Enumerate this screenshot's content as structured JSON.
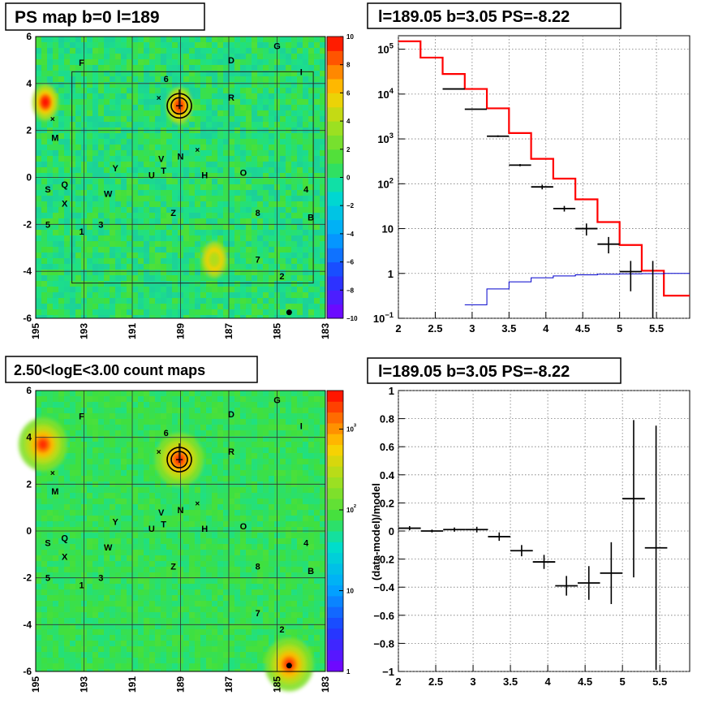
{
  "colors": {
    "map_bg": "#3fe03f",
    "map_bg_alt": "#5fe83a",
    "model_line": "#ff0000",
    "background_line": "#0000cc",
    "data_marks": "#000000",
    "grid": "#888888"
  },
  "map_ticks_x": [
    "195",
    "193",
    "191",
    "189",
    "187",
    "185",
    "183"
  ],
  "map_ticks_y": [
    "6",
    "4",
    "2",
    "0",
    "-2",
    "-4",
    "-6"
  ],
  "source_labels": [
    {
      "text": "G",
      "l": 185.0,
      "b": 5.6
    },
    {
      "text": "F",
      "l": 193.1,
      "b": 4.9
    },
    {
      "text": "D",
      "l": 186.9,
      "b": 5.0
    },
    {
      "text": "I",
      "l": 184.0,
      "b": 4.5
    },
    {
      "text": "6",
      "l": 189.6,
      "b": 4.2
    },
    {
      "text": "R",
      "l": 186.9,
      "b": 3.4
    },
    {
      "text": "M",
      "l": 194.2,
      "b": 1.7
    },
    {
      "text": "V",
      "l": 189.8,
      "b": 0.8
    },
    {
      "text": "N",
      "l": 189.0,
      "b": 0.9
    },
    {
      "text": "Y",
      "l": 191.7,
      "b": 0.4
    },
    {
      "text": "T",
      "l": 189.7,
      "b": 0.3
    },
    {
      "text": "U",
      "l": 190.2,
      "b": 0.1
    },
    {
      "text": "H",
      "l": 188.0,
      "b": 0.1
    },
    {
      "text": "O",
      "l": 186.4,
      "b": 0.2
    },
    {
      "text": "S",
      "l": 194.5,
      "b": -0.5
    },
    {
      "text": "Q",
      "l": 193.8,
      "b": -0.3
    },
    {
      "text": "W",
      "l": 192.0,
      "b": -0.7
    },
    {
      "text": "4",
      "l": 183.8,
      "b": -0.5
    },
    {
      "text": "X",
      "l": 193.8,
      "b": -1.1
    },
    {
      "text": "Z",
      "l": 189.3,
      "b": -1.5
    },
    {
      "text": "8",
      "l": 185.8,
      "b": -1.5
    },
    {
      "text": "B",
      "l": 183.6,
      "b": -1.7
    },
    {
      "text": "5",
      "l": 194.5,
      "b": -2.0
    },
    {
      "text": "3",
      "l": 192.3,
      "b": -2.0
    },
    {
      "text": "1",
      "l": 193.1,
      "b": -2.3
    },
    {
      "text": "7",
      "l": 185.8,
      "b": -3.5
    },
    {
      "text": "2",
      "l": 184.8,
      "b": -4.2
    }
  ],
  "cross_marks": [
    {
      "l": 189.9,
      "b": 3.4
    },
    {
      "l": 194.3,
      "b": 2.5
    },
    {
      "l": 188.3,
      "b": 1.2
    }
  ],
  "panels": {
    "ps_map": {
      "title": "PS map b=0 l=189",
      "colorbar_ticks": [
        "10",
        "8",
        "6",
        "4",
        "2",
        "0",
        "−2",
        "−4",
        "−6",
        "−8",
        "−10"
      ]
    },
    "count_map": {
      "title": "2.50<logE<3.00 count maps",
      "colorbar_ticks": [
        {
          "label": "10",
          "sup": "3"
        },
        {
          "label": "10",
          "sup": "2"
        },
        {
          "label": "10",
          "sup": ""
        },
        {
          "label": "1",
          "sup": ""
        }
      ]
    },
    "spectrum": {
      "title": "l=189.05 b=3.05 PS=-8.22",
      "x_ticks": [
        "2",
        "2.5",
        "3",
        "3.5",
        "4",
        "4.5",
        "5",
        "5.5"
      ],
      "y_ticks": [
        {
          "base": "10",
          "exp": "5"
        },
        {
          "base": "10",
          "exp": "4"
        },
        {
          "base": "10",
          "exp": "3"
        },
        {
          "base": "10",
          "exp": "2"
        },
        {
          "base": "10",
          "exp": ""
        },
        {
          "base": "1",
          "exp": ""
        },
        {
          "base": "10",
          "exp": "−1"
        }
      ]
    },
    "residual": {
      "title": "l=189.05 b=3.05 PS=-8.22",
      "ylabel": "(data-model)/model",
      "x_ticks": [
        "2",
        "2.5",
        "3",
        "3.5",
        "4",
        "4.5",
        "5",
        "5.5"
      ],
      "y_ticks": [
        "1",
        "0.8",
        "0.6",
        "0.4",
        "0.2",
        "0",
        "−0.2",
        "−0.4",
        "−0.6",
        "−0.8",
        "−1"
      ]
    }
  },
  "chart_data": [
    {
      "type": "heatmap",
      "title": "PS map b=0 l=189",
      "xlim": [
        195,
        183
      ],
      "ylim": [
        -6,
        6
      ],
      "zlim": [
        -10,
        10
      ],
      "colorbar": "linear",
      "grid": true,
      "box": {
        "l": [
          193.5,
          183.5
        ],
        "b": [
          -4.5,
          4.5
        ]
      },
      "hotspots": [
        {
          "l": 194.6,
          "b": 3.2,
          "value": 10
        },
        {
          "l": 189.05,
          "b": 3.05,
          "value": 9
        },
        {
          "l": 187.6,
          "b": -3.5,
          "value": 4
        }
      ],
      "target": {
        "l": 189.05,
        "b": 3.05
      }
    },
    {
      "type": "heatmap",
      "title": "2.50<logE<3.00 count maps",
      "xlim": [
        195,
        183
      ],
      "ylim": [
        -6,
        6
      ],
      "zlim": [
        1,
        3000
      ],
      "colorbar": "log",
      "grid": true,
      "hotspots": [
        {
          "l": 194.7,
          "b": 3.7,
          "value": 2000
        },
        {
          "l": 184.5,
          "b": -5.7,
          "value": 2000
        },
        {
          "l": 189.05,
          "b": 3.05,
          "value": 1500
        }
      ],
      "target": {
        "l": 189.05,
        "b": 3.05
      }
    },
    {
      "type": "line",
      "title": "l=189.05 b=3.05 PS=-8.22",
      "xlim": [
        2,
        5.95
      ],
      "ylim": [
        0.1,
        200000
      ],
      "yscale": "log",
      "grid": true,
      "series": [
        {
          "style": "step",
          "edges": [
            2.0,
            2.3,
            2.6,
            2.9,
            3.2,
            3.5,
            3.8,
            4.1,
            4.4,
            4.7,
            5.0,
            5.3,
            5.6,
            5.95
          ],
          "values": [
            150000,
            65000,
            28000,
            13000,
            4800,
            1350,
            360,
            130,
            45,
            14,
            4.3,
            1.15,
            0.32
          ]
        },
        {
          "style": "step",
          "edges": [
            2.9,
            3.2,
            3.5,
            3.8,
            4.1,
            4.4,
            4.7,
            5.0,
            5.3,
            5.6,
            5.95
          ],
          "values": [
            0.2,
            0.45,
            0.65,
            0.8,
            0.88,
            0.93,
            0.96,
            0.98,
            0.99,
            1.0
          ]
        },
        {
          "style": "points",
          "x": [
            2.75,
            3.05,
            3.35,
            3.65,
            3.95,
            4.25,
            4.55,
            4.85,
            5.15,
            5.45
          ],
          "y": [
            13000,
            4600,
            1150,
            260,
            85,
            28,
            10,
            4.5,
            1.1,
            null
          ],
          "ylow": [
            12700,
            4500,
            1100,
            245,
            75,
            24,
            7,
            2.8,
            0.4,
            null
          ],
          "yhigh": [
            13300,
            4700,
            1200,
            275,
            95,
            32,
            13,
            6.5,
            1.9,
            null
          ]
        }
      ]
    },
    {
      "type": "scatter",
      "title": "l=189.05 b=3.05 PS=-8.22",
      "ylabel": "(data-model)/model",
      "xlim": [
        2,
        5.9
      ],
      "ylim": [
        -1,
        1
      ],
      "grid": true,
      "series": [
        {
          "x": [
            2.15,
            2.45,
            2.75,
            3.05,
            3.35,
            3.65,
            3.95,
            4.25,
            4.55,
            4.85,
            5.15,
            5.45
          ],
          "y": [
            0.02,
            0.0,
            0.01,
            0.01,
            -0.04,
            -0.14,
            -0.22,
            -0.39,
            -0.37,
            -0.3,
            0.23,
            -0.12
          ],
          "yerr": [
            0.015,
            0.01,
            0.015,
            0.02,
            0.03,
            0.04,
            0.05,
            0.07,
            0.12,
            0.22,
            0.56,
            0.87
          ],
          "xerr": 0.15
        }
      ]
    }
  ]
}
